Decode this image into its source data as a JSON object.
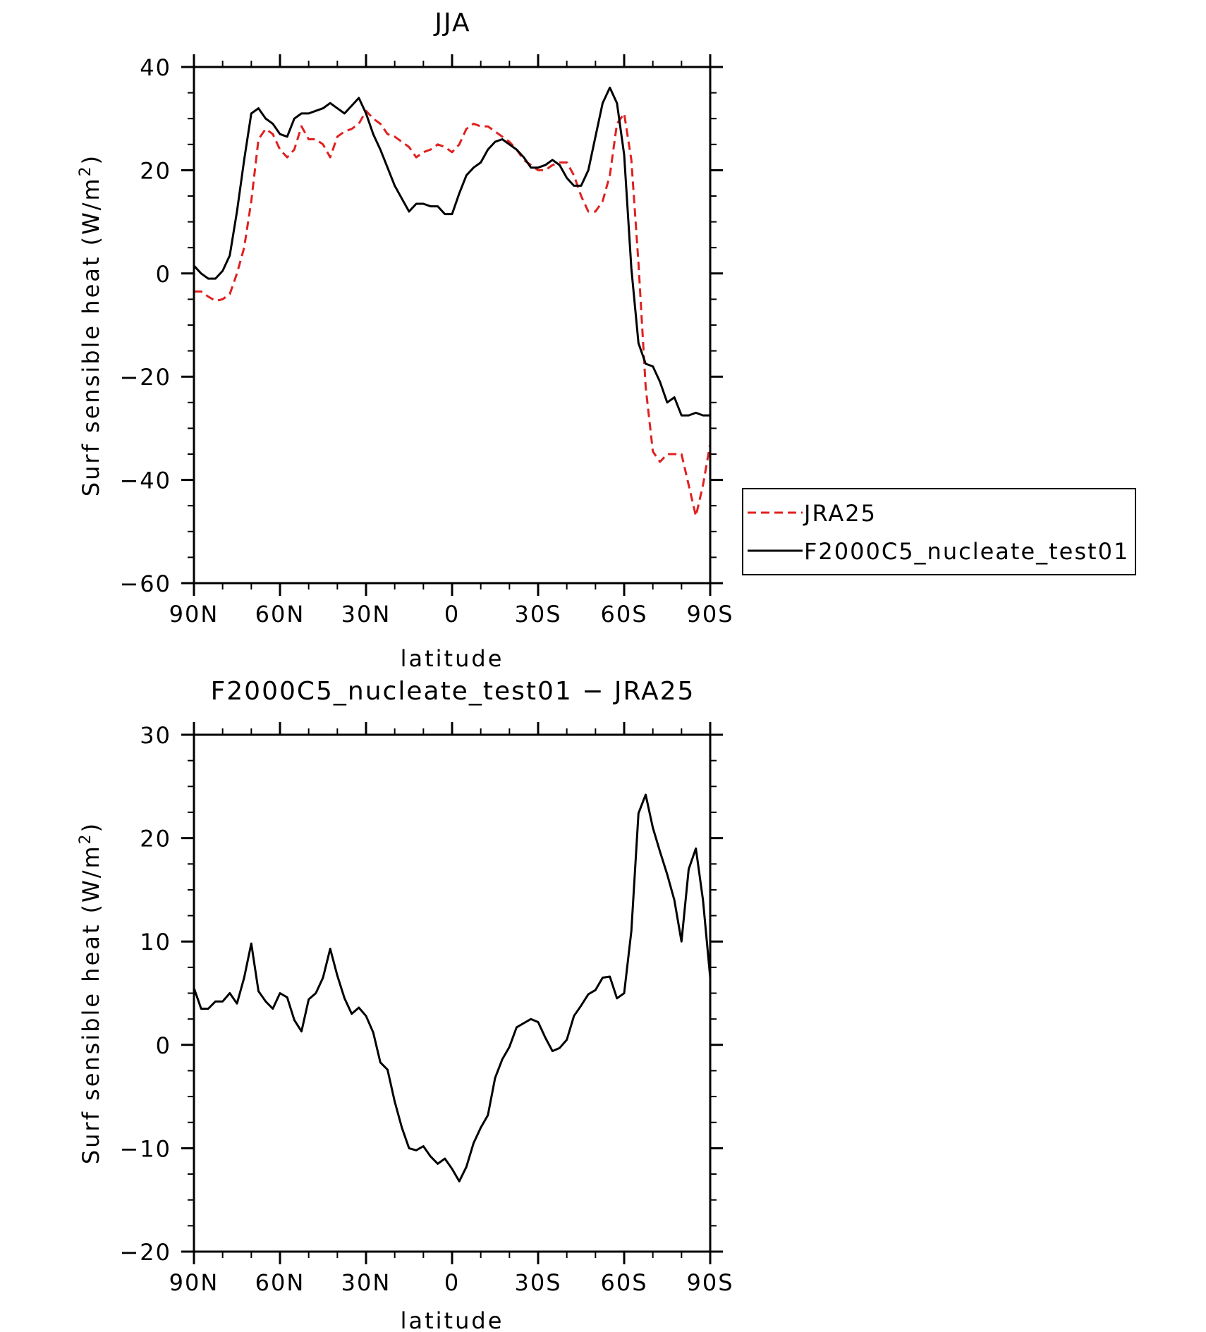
{
  "chart_data": [
    {
      "type": "line",
      "title": "JJA",
      "xlabel": "latitude",
      "ylabel": "Surf sensible heat (W/m²)",
      "ylabel_main": "Surf sensible heat (W/m",
      "ylabel_sup": "2",
      "ylabel_end": ")",
      "xlim": [
        90,
        -90
      ],
      "ylim": [
        -60,
        40
      ],
      "xticks": [
        90,
        60,
        30,
        0,
        -30,
        -60,
        -90
      ],
      "xtick_labels": [
        "90N",
        "60N",
        "30N",
        "0",
        "30S",
        "60S",
        "90S"
      ],
      "yticks": [
        40,
        20,
        0,
        -20,
        -40,
        -60
      ],
      "ytick_labels": [
        "40",
        "20",
        "0",
        "−20",
        "−40",
        "−60"
      ],
      "legend_position": "right, outside plot",
      "series": [
        {
          "name": "JRA25",
          "color": "#e0201f",
          "dash": "dashed",
          "points": [
            [
              90,
              -3.5
            ],
            [
              87.5,
              -3.5
            ],
            [
              85,
              -4.5
            ],
            [
              82.5,
              -5.3
            ],
            [
              80,
              -5
            ],
            [
              77.5,
              -4
            ],
            [
              75,
              0
            ],
            [
              72.5,
              5
            ],
            [
              70,
              14
            ],
            [
              67.5,
              26
            ],
            [
              65,
              28
            ],
            [
              62.5,
              27
            ],
            [
              60,
              24
            ],
            [
              57.5,
              22.5
            ],
            [
              55,
              24
            ],
            [
              52.5,
              28.5
            ],
            [
              50,
              26
            ],
            [
              47.5,
              26
            ],
            [
              45,
              25
            ],
            [
              42.5,
              22.5
            ],
            [
              40,
              26.5
            ],
            [
              37.5,
              27.5
            ],
            [
              35,
              28
            ],
            [
              32.5,
              29
            ],
            [
              30,
              31.5
            ],
            [
              27.5,
              30
            ],
            [
              25,
              29
            ],
            [
              22.5,
              27
            ],
            [
              20,
              26.5
            ],
            [
              17.5,
              25.5
            ],
            [
              15,
              24.5
            ],
            [
              12.5,
              22.5
            ],
            [
              10,
              23.5
            ],
            [
              7.5,
              24
            ],
            [
              5,
              25
            ],
            [
              2.5,
              24.5
            ],
            [
              0,
              23.5
            ],
            [
              -2.5,
              25
            ],
            [
              -5,
              28
            ],
            [
              -7.5,
              29
            ],
            [
              -10,
              28.5
            ],
            [
              -12.5,
              28.5
            ],
            [
              -15,
              27.5
            ],
            [
              -17.5,
              26.5
            ],
            [
              -20,
              25.5
            ],
            [
              -22.5,
              24
            ],
            [
              -25,
              22
            ],
            [
              -27.5,
              21
            ],
            [
              -30,
              20
            ],
            [
              -32.5,
              20
            ],
            [
              -35,
              21
            ],
            [
              -37.5,
              21.5
            ],
            [
              -40,
              21.5
            ],
            [
              -42.5,
              19
            ],
            [
              -45,
              15
            ],
            [
              -47.5,
              12
            ],
            [
              -50,
              12
            ],
            [
              -52.5,
              14
            ],
            [
              -55,
              19
            ],
            [
              -57.5,
              29
            ],
            [
              -60,
              31
            ],
            [
              -62.5,
              22
            ],
            [
              -65,
              2
            ],
            [
              -67.5,
              -22
            ],
            [
              -70,
              -34.5
            ],
            [
              -72.5,
              -36.5
            ],
            [
              -75,
              -35
            ],
            [
              -77.5,
              -35
            ],
            [
              -80,
              -35
            ],
            [
              -82.5,
              -41
            ],
            [
              -85,
              -47
            ],
            [
              -87.5,
              -41
            ],
            [
              -90,
              -33
            ]
          ]
        },
        {
          "name": "F2000C5_nucleate_test01",
          "color": "#000000",
          "dash": "solid",
          "points": [
            [
              90,
              1.5
            ],
            [
              87.5,
              0
            ],
            [
              85,
              -1
            ],
            [
              82.5,
              -1
            ],
            [
              80,
              0.5
            ],
            [
              77.5,
              3.5
            ],
            [
              75,
              12
            ],
            [
              72.5,
              22
            ],
            [
              70,
              31
            ],
            [
              67.5,
              32
            ],
            [
              65,
              30
            ],
            [
              62.5,
              29
            ],
            [
              60,
              27
            ],
            [
              57.5,
              26.5
            ],
            [
              55,
              30
            ],
            [
              52.5,
              31
            ],
            [
              50,
              31
            ],
            [
              47.5,
              31.5
            ],
            [
              45,
              32
            ],
            [
              42.5,
              33
            ],
            [
              40,
              32
            ],
            [
              37.5,
              31
            ],
            [
              35,
              32.5
            ],
            [
              32.5,
              34
            ],
            [
              30,
              31
            ],
            [
              27.5,
              27
            ],
            [
              25,
              24
            ],
            [
              22.5,
              20.5
            ],
            [
              20,
              17
            ],
            [
              17.5,
              14.5
            ],
            [
              15,
              12
            ],
            [
              12.5,
              13.5
            ],
            [
              10,
              13.5
            ],
            [
              7.5,
              13
            ],
            [
              5,
              13
            ],
            [
              2.5,
              11.5
            ],
            [
              0,
              11.5
            ],
            [
              -2.5,
              15.5
            ],
            [
              -5,
              19
            ],
            [
              -7.5,
              20.5
            ],
            [
              -10,
              21.5
            ],
            [
              -12.5,
              24
            ],
            [
              -15,
              25.5
            ],
            [
              -17.5,
              26
            ],
            [
              -20,
              25
            ],
            [
              -22.5,
              24
            ],
            [
              -25,
              22.5
            ],
            [
              -27.5,
              20.5
            ],
            [
              -30,
              20.5
            ],
            [
              -32.5,
              21
            ],
            [
              -35,
              22
            ],
            [
              -37.5,
              21
            ],
            [
              -40,
              18.5
            ],
            [
              -42.5,
              17
            ],
            [
              -45,
              17
            ],
            [
              -47.5,
              20
            ],
            [
              -50,
              26.5
            ],
            [
              -52.5,
              33
            ],
            [
              -55,
              36
            ],
            [
              -57.5,
              33
            ],
            [
              -60,
              23
            ],
            [
              -62.5,
              1
            ],
            [
              -65,
              -13.5
            ],
            [
              -67.5,
              -17.5
            ],
            [
              -70,
              -18
            ],
            [
              -72.5,
              -21
            ],
            [
              -75,
              -25
            ],
            [
              -77.5,
              -24
            ],
            [
              -80,
              -27.5
            ],
            [
              -82.5,
              -27.5
            ],
            [
              -85,
              -27
            ],
            [
              -87.5,
              -27.5
            ],
            [
              -90,
              -27.5
            ]
          ]
        }
      ],
      "legend": [
        {
          "label": "JRA25",
          "color": "#e0201f",
          "dash": "dashed"
        },
        {
          "label": "F2000C5_nucleate_test01",
          "color": "#000000",
          "dash": "solid"
        }
      ]
    },
    {
      "type": "line",
      "title": "F2000C5_nucleate_test01 − JRA25",
      "xlabel": "latitude",
      "ylabel": "Surf sensible heat (W/m²)",
      "ylabel_main": "Surf sensible heat (W/m",
      "ylabel_sup": "2",
      "ylabel_end": ")",
      "xlim": [
        90,
        -90
      ],
      "ylim": [
        -20,
        30
      ],
      "xticks": [
        90,
        60,
        30,
        0,
        -30,
        -60,
        -90
      ],
      "xtick_labels": [
        "90N",
        "60N",
        "30N",
        "0",
        "30S",
        "60S",
        "90S"
      ],
      "yticks": [
        30,
        20,
        10,
        0,
        -10,
        -20
      ],
      "ytick_labels": [
        "30",
        "20",
        "10",
        "0",
        "−10",
        "−20"
      ],
      "series": [
        {
          "color": "#000000",
          "dash": "solid",
          "points": [
            [
              90,
              5.5
            ],
            [
              87.5,
              3.5
            ],
            [
              85,
              3.5
            ],
            [
              82.5,
              4.2
            ],
            [
              80,
              4.2
            ],
            [
              77.5,
              5
            ],
            [
              75,
              4
            ],
            [
              72.5,
              6.5
            ],
            [
              70,
              9.8
            ],
            [
              67.5,
              5.2
            ],
            [
              65,
              4.2
            ],
            [
              62.5,
              3.5
            ],
            [
              60,
              5
            ],
            [
              57.5,
              4.6
            ],
            [
              55,
              2.4
            ],
            [
              52.5,
              1.3
            ],
            [
              50,
              4.4
            ],
            [
              47.5,
              5
            ],
            [
              45,
              6.5
            ],
            [
              42.5,
              9.3
            ],
            [
              40,
              6.7
            ],
            [
              37.5,
              4.5
            ],
            [
              35,
              3
            ],
            [
              32.5,
              3.6
            ],
            [
              30,
              2.8
            ],
            [
              27.5,
              1.2
            ],
            [
              25,
              -1.7
            ],
            [
              22.5,
              -2.4
            ],
            [
              20,
              -5.5
            ],
            [
              17.5,
              -8
            ],
            [
              15,
              -10
            ],
            [
              12.5,
              -10.2
            ],
            [
              10,
              -9.8
            ],
            [
              7.5,
              -10.8
            ],
            [
              5,
              -11.5
            ],
            [
              2.5,
              -11
            ],
            [
              0,
              -12
            ],
            [
              -2.5,
              -13.2
            ],
            [
              -5,
              -11.8
            ],
            [
              -7.5,
              -9.5
            ],
            [
              -10,
              -8
            ],
            [
              -12.5,
              -6.8
            ],
            [
              -15,
              -3.2
            ],
            [
              -17.5,
              -1.4
            ],
            [
              -20,
              -0.2
            ],
            [
              -22.5,
              1.7
            ],
            [
              -25,
              2.1
            ],
            [
              -27.5,
              2.5
            ],
            [
              -30,
              2.2
            ],
            [
              -32.5,
              0.7
            ],
            [
              -35,
              -0.6
            ],
            [
              -37.5,
              -0.3
            ],
            [
              -40,
              0.5
            ],
            [
              -42.5,
              2.8
            ],
            [
              -45,
              3.8
            ],
            [
              -47.5,
              4.9
            ],
            [
              -50,
              5.3
            ],
            [
              -52.5,
              6.5
            ],
            [
              -55,
              6.6
            ],
            [
              -57.5,
              4.5
            ],
            [
              -60,
              5
            ],
            [
              -62.5,
              11
            ],
            [
              -65,
              22.4
            ],
            [
              -67.5,
              24.2
            ],
            [
              -70,
              21
            ],
            [
              -72.5,
              18.7
            ],
            [
              -75,
              16.5
            ],
            [
              -77.5,
              14
            ],
            [
              -80,
              10
            ],
            [
              -82.5,
              17
            ],
            [
              -85,
              19
            ],
            [
              -87.5,
              14
            ],
            [
              -90,
              6.5
            ]
          ]
        }
      ]
    }
  ]
}
